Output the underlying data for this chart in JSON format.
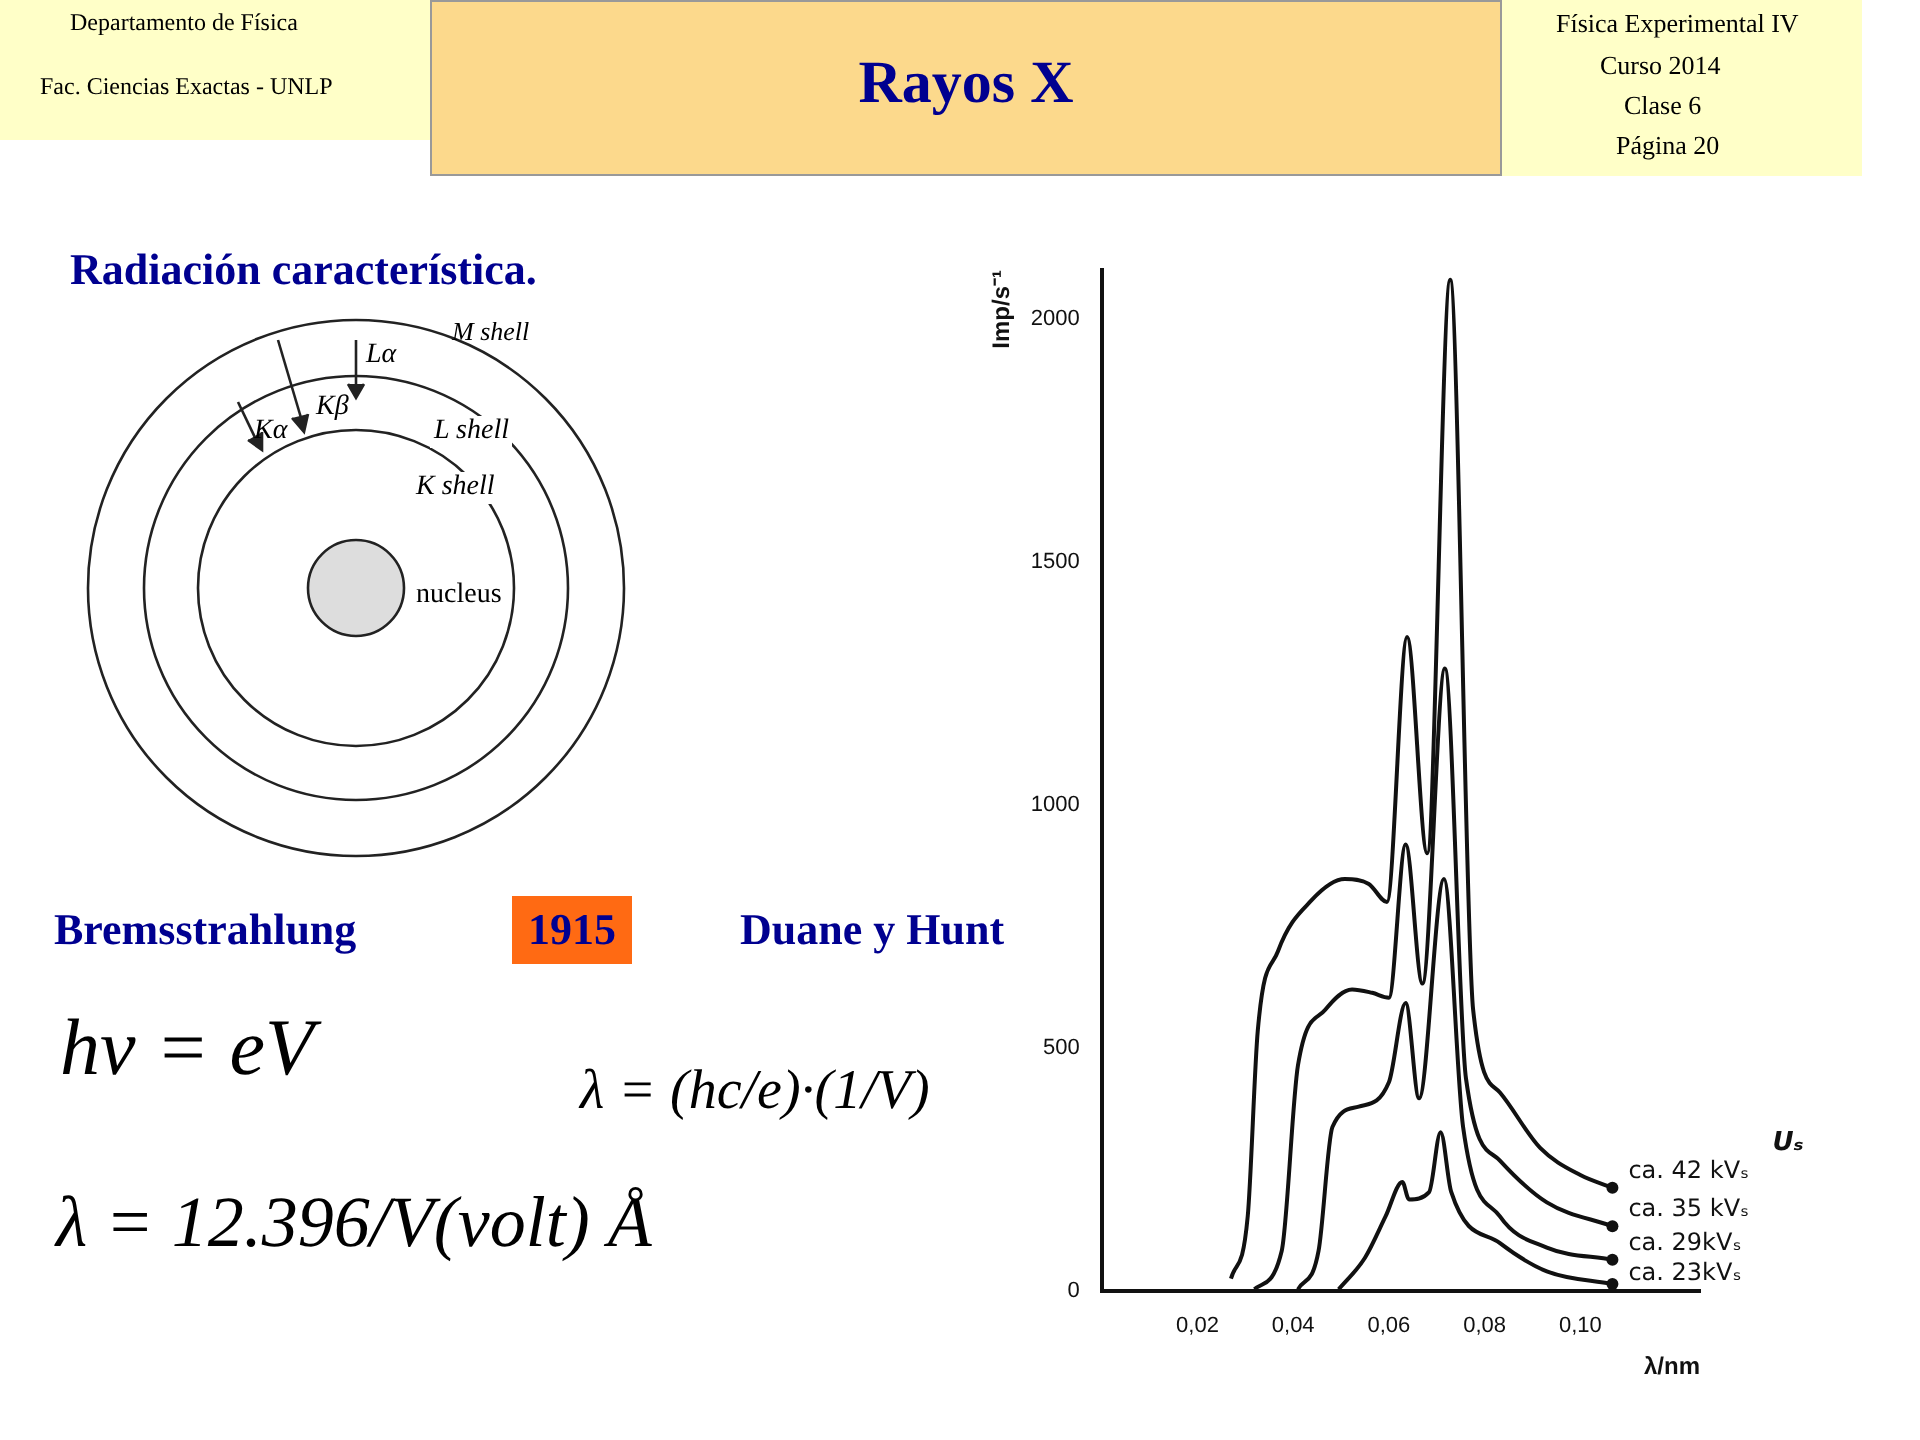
{
  "chart_data": {
    "type": "line",
    "title": "Rayos X",
    "annotations": [
      "Departamento de Física",
      "Fac. Ciencias Exactas - UNLP",
      "Física Experimental IV",
      "Curso 2014",
      "Clase 6",
      "Página 20",
      "Radiación característica.",
      "M shell",
      "Lα",
      "Kβ",
      "Kα",
      "L shell",
      "K shell",
      "nucleus",
      "Bremsstrahlung",
      "1915",
      "Duane y Hunt",
      "hν = eV",
      "λ = (hc/e)·(1/V)",
      "λ = 12.396/V(volt) Å"
    ],
    "xlabel": "λ/nm",
    "ylabel": "Imp/s⁻¹",
    "legend_title": "Uₛ",
    "xlim": [
      0,
      0.125
    ],
    "ylim": [
      0,
      2100
    ],
    "xticks": [
      {
        "value": 0.02,
        "label": "0,02"
      },
      {
        "value": 0.04,
        "label": "0,04"
      },
      {
        "value": 0.06,
        "label": "0,06"
      },
      {
        "value": 0.08,
        "label": "0,08"
      },
      {
        "value": 0.1,
        "label": "0,10"
      }
    ],
    "yticks": [
      0,
      500,
      1000,
      1500,
      2000
    ],
    "grid": false,
    "legend": false,
    "marker": "none",
    "line_style": "solid",
    "series": [
      {
        "name": "ca. 42 kVₛ",
        "color": "#111111",
        "x": [
          0.027,
          0.0305,
          0.0326,
          0.0368,
          0.0439,
          0.0508,
          0.0558,
          0.0596,
          0.0638,
          0.068,
          0.0728,
          0.0776,
          0.0832,
          0.0916,
          0.1,
          0.1067
        ],
        "values": [
          25,
          153,
          535,
          698,
          804,
          847,
          837,
          800,
          1345,
          900,
          2080,
          578,
          408,
          294,
          238,
          212
        ]
      },
      {
        "name": "ca. 35 kVₛ",
        "color": "#111111",
        "x": [
          0.0319,
          0.0376,
          0.041,
          0.0467,
          0.0523,
          0.0565,
          0.06,
          0.0635,
          0.067,
          0.0717,
          0.0761,
          0.0832,
          0.093,
          0.1067
        ],
        "values": [
          3,
          82,
          464,
          578,
          620,
          613,
          603,
          918,
          632,
          1280,
          437,
          268,
          182,
          133
        ]
      },
      {
        "name": "ca. 29kVₛ",
        "color": "#111111",
        "x": [
          0.041,
          0.0453,
          0.0482,
          0.0537,
          0.06,
          0.0635,
          0.0663,
          0.0715,
          0.0755,
          0.0832,
          0.093,
          0.1067
        ],
        "values": [
          3,
          82,
          337,
          379,
          429,
          592,
          396,
          847,
          337,
          153,
          89,
          64
        ]
      },
      {
        "name": "ca. 23kVₛ",
        "color": "#111111",
        "x": [
          0.0495,
          0.055,
          0.0593,
          0.0628,
          0.0642,
          0.0684,
          0.0708,
          0.073,
          0.0832,
          0.093,
          0.1067
        ],
        "values": [
          3,
          68,
          153,
          224,
          188,
          203,
          326,
          204,
          98,
          40,
          14
        ]
      }
    ]
  }
}
